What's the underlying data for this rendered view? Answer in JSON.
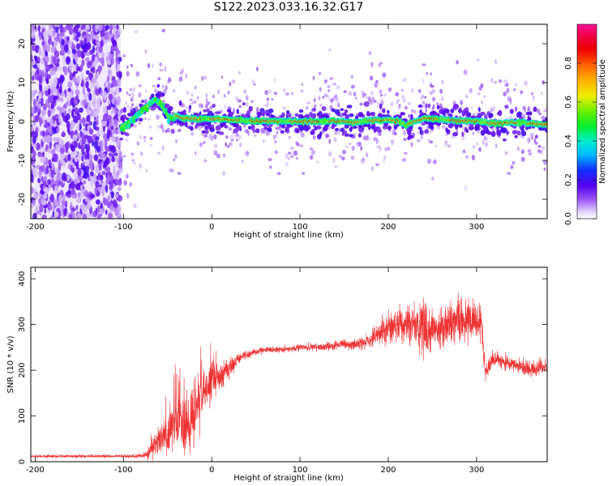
{
  "page": {
    "title": "S122.2023.033.16.32.G17"
  },
  "chart_data": [
    {
      "type": "heatmap",
      "title": "",
      "xlabel": "Height of straight line (km)",
      "ylabel": "Frequency (Hz)",
      "xlim": [
        -205,
        380
      ],
      "ylim": [
        -25,
        25
      ],
      "xticks": [
        -200,
        -100,
        0,
        100,
        200,
        300
      ],
      "yticks": [
        -20,
        -10,
        0,
        10,
        20
      ],
      "noise_region_x": [
        -205,
        -103
      ],
      "ridge": {
        "x": [
          -103,
          -95,
          -90,
          -85,
          -80,
          -75,
          -70,
          -65,
          -60,
          -55,
          -50,
          -45,
          -40,
          -35,
          -30,
          -20,
          -10,
          0,
          20,
          40,
          60,
          80,
          100,
          120,
          140,
          160,
          180,
          200,
          210,
          220,
          240,
          260,
          280,
          300,
          320,
          340,
          360,
          380
        ],
        "y": [
          -1.5,
          -0.5,
          0.5,
          1.5,
          2.5,
          3.5,
          4.5,
          5.5,
          5.0,
          3.5,
          1.5,
          1.0,
          1.5,
          1.0,
          0.8,
          0.8,
          0.7,
          0.7,
          0.5,
          0.2,
          0.1,
          0.1,
          0,
          0,
          0.1,
          -0.2,
          0.2,
          0.5,
          0.2,
          -1.0,
          0.8,
          0.5,
          0.2,
          0.1,
          -0.5,
          -0.2,
          -0.5,
          -0.8
        ]
      },
      "colorbar": {
        "label": "Normalized spectral amplitude",
        "range": [
          0,
          1
        ],
        "ticks": [
          0.0,
          0.2,
          0.4,
          0.6,
          0.8
        ],
        "colormap": "rainbow (white → violet → blue → cyan → green → yellow → orange → red → magenta)"
      },
      "grid": false,
      "legend": "none"
    },
    {
      "type": "line",
      "title": "",
      "xlabel": "Height of straight line (km)",
      "ylabel": "SNR (10 * v/v)",
      "xlim": [
        -205,
        380
      ],
      "ylim": [
        0,
        425
      ],
      "xticks": [
        -200,
        -100,
        0,
        100,
        200,
        300
      ],
      "yticks": [
        0,
        100,
        200,
        300,
        400
      ],
      "series": [
        {
          "name": "",
          "color": "#ee3333",
          "x": [
            -205,
            -180,
            -150,
            -120,
            -90,
            -75,
            -70,
            -60,
            -50,
            -40,
            -30,
            -20,
            -15,
            -10,
            -5,
            0,
            5,
            10,
            20,
            30,
            40,
            60,
            80,
            100,
            120,
            140,
            160,
            180,
            190,
            200,
            210,
            220,
            230,
            240,
            250,
            260,
            270,
            280,
            290,
            300,
            305,
            310,
            320,
            340,
            360,
            380
          ],
          "y": [
            12,
            12,
            12,
            12,
            12,
            14,
            25,
            45,
            60,
            90,
            75,
            100,
            130,
            150,
            160,
            180,
            185,
            190,
            205,
            225,
            235,
            245,
            245,
            250,
            250,
            255,
            255,
            265,
            280,
            290,
            300,
            295,
            300,
            290,
            290,
            290,
            295,
            300,
            310,
            305,
            310,
            200,
            225,
            215,
            200,
            210
          ],
          "noise": [
            2,
            3,
            3,
            3,
            3,
            6,
            20,
            30,
            45,
            60,
            60,
            60,
            55,
            50,
            45,
            40,
            35,
            30,
            20,
            10,
            8,
            6,
            6,
            6,
            8,
            10,
            10,
            15,
            25,
            30,
            35,
            40,
            40,
            55,
            45,
            40,
            40,
            45,
            50,
            40,
            40,
            20,
            15,
            15,
            15,
            15
          ]
        }
      ],
      "grid": false,
      "legend": "none"
    }
  ]
}
